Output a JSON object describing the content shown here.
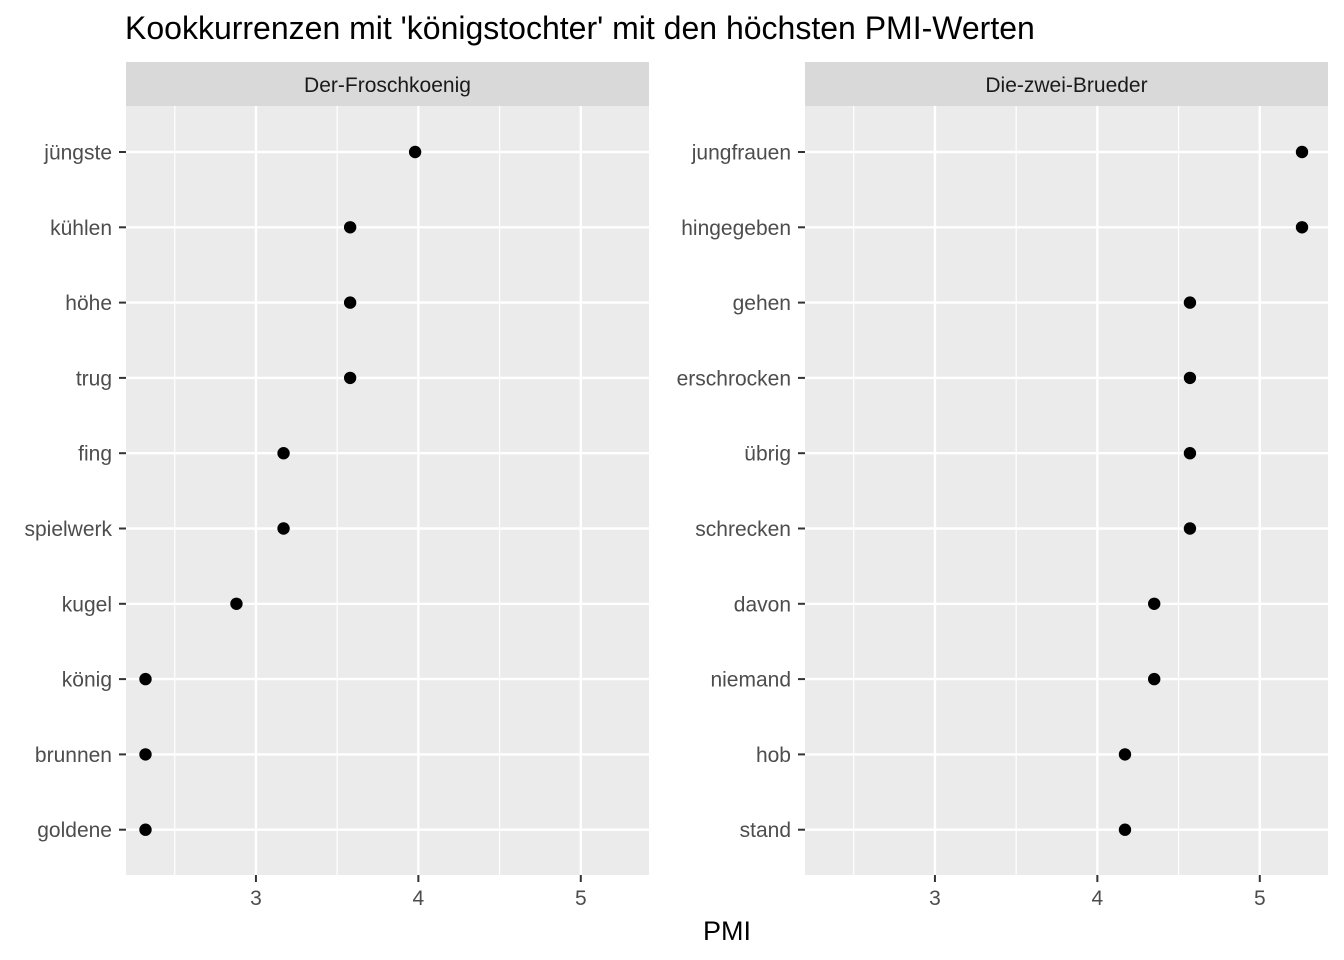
{
  "chart_data": {
    "type": "scatter",
    "title": "Kookkurrenzen mit 'königstochter' mit den höchsten PMI-Werten",
    "xlabel": "PMI",
    "ylabel": "",
    "xlim": [
      2.2,
      5.42
    ],
    "x_ticks": [
      3,
      4,
      5
    ],
    "x_minor": [
      2.5,
      3.5,
      4.5
    ],
    "grid": true,
    "legend": "none",
    "colors": {
      "panel": "#ebebeb",
      "strip": "#d9d9d9",
      "grid": "#ffffff",
      "point": "#000000",
      "tick": "#333333"
    },
    "panels": [
      {
        "name": "Der-Froschkoenig",
        "points": [
          {
            "label": "jüngste",
            "value": 3.98
          },
          {
            "label": "kühlen",
            "value": 3.58
          },
          {
            "label": "höhe",
            "value": 3.58
          },
          {
            "label": "trug",
            "value": 3.58
          },
          {
            "label": "fing",
            "value": 3.17
          },
          {
            "label": "spielwerk",
            "value": 3.17
          },
          {
            "label": "kugel",
            "value": 2.88
          },
          {
            "label": "könig",
            "value": 2.32
          },
          {
            "label": "brunnen",
            "value": 2.32
          },
          {
            "label": "goldene",
            "value": 2.32
          }
        ]
      },
      {
        "name": "Die-zwei-Brueder",
        "points": [
          {
            "label": "jungfrauen",
            "value": 5.26
          },
          {
            "label": "hingegeben",
            "value": 5.26
          },
          {
            "label": "gehen",
            "value": 4.57
          },
          {
            "label": "erschrocken",
            "value": 4.57
          },
          {
            "label": "übrig",
            "value": 4.57
          },
          {
            "label": "schrecken",
            "value": 4.57
          },
          {
            "label": "davon",
            "value": 4.35
          },
          {
            "label": "niemand",
            "value": 4.35
          },
          {
            "label": "hob",
            "value": 4.17
          },
          {
            "label": "stand",
            "value": 4.17
          }
        ]
      }
    ]
  }
}
